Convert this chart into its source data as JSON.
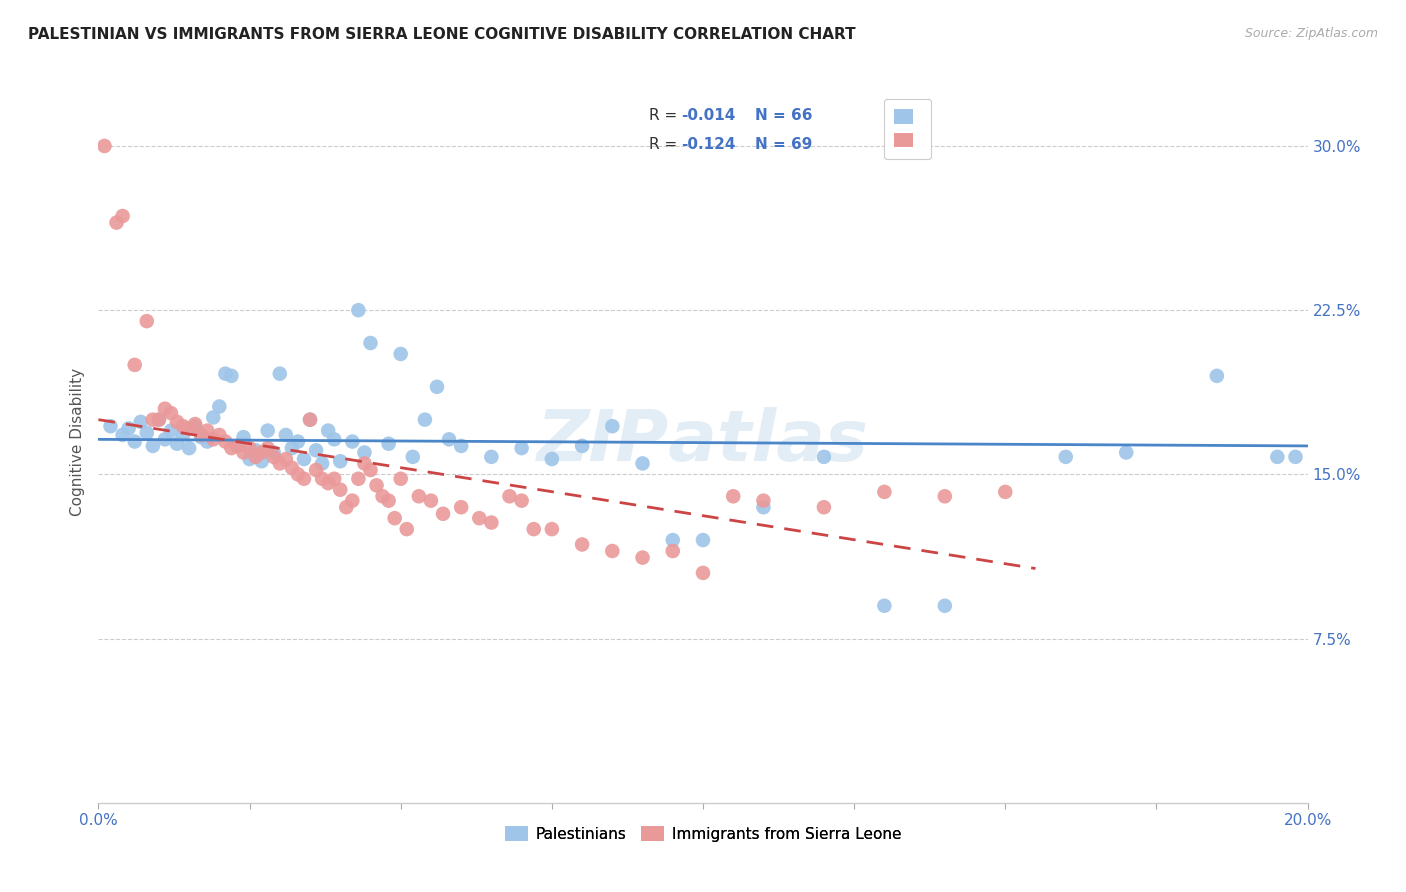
{
  "title": "PALESTINIAN VS IMMIGRANTS FROM SIERRA LEONE COGNITIVE DISABILITY CORRELATION CHART",
  "source": "Source: ZipAtlas.com",
  "ylabel": "Cognitive Disability",
  "right_yticks": [
    "30.0%",
    "22.5%",
    "15.0%",
    "7.5%"
  ],
  "right_ytick_vals": [
    0.3,
    0.225,
    0.15,
    0.075
  ],
  "color_blue": "#9fc5e8",
  "color_pink": "#ea9999",
  "line_blue": "#4a86c8",
  "line_pink": "#cc4444",
  "watermark": "ZIPAtlas",
  "blue_scatter": [
    [
      0.002,
      0.172
    ],
    [
      0.004,
      0.168
    ],
    [
      0.005,
      0.171
    ],
    [
      0.006,
      0.165
    ],
    [
      0.007,
      0.174
    ],
    [
      0.008,
      0.169
    ],
    [
      0.009,
      0.163
    ],
    [
      0.01,
      0.175
    ],
    [
      0.011,
      0.166
    ],
    [
      0.012,
      0.17
    ],
    [
      0.013,
      0.164
    ],
    [
      0.014,
      0.168
    ],
    [
      0.015,
      0.162
    ],
    [
      0.016,
      0.172
    ],
    [
      0.017,
      0.167
    ],
    [
      0.018,
      0.165
    ],
    [
      0.019,
      0.176
    ],
    [
      0.02,
      0.181
    ],
    [
      0.021,
      0.196
    ],
    [
      0.022,
      0.195
    ],
    [
      0.023,
      0.163
    ],
    [
      0.024,
      0.167
    ],
    [
      0.025,
      0.157
    ],
    [
      0.026,
      0.161
    ],
    [
      0.027,
      0.156
    ],
    [
      0.028,
      0.17
    ],
    [
      0.029,
      0.16
    ],
    [
      0.03,
      0.196
    ],
    [
      0.031,
      0.168
    ],
    [
      0.032,
      0.162
    ],
    [
      0.033,
      0.165
    ],
    [
      0.034,
      0.157
    ],
    [
      0.035,
      0.175
    ],
    [
      0.036,
      0.161
    ],
    [
      0.037,
      0.155
    ],
    [
      0.038,
      0.17
    ],
    [
      0.039,
      0.166
    ],
    [
      0.04,
      0.156
    ],
    [
      0.042,
      0.165
    ],
    [
      0.043,
      0.225
    ],
    [
      0.044,
      0.16
    ],
    [
      0.045,
      0.21
    ],
    [
      0.048,
      0.164
    ],
    [
      0.05,
      0.205
    ],
    [
      0.052,
      0.158
    ],
    [
      0.054,
      0.175
    ],
    [
      0.056,
      0.19
    ],
    [
      0.058,
      0.166
    ],
    [
      0.06,
      0.163
    ],
    [
      0.065,
      0.158
    ],
    [
      0.07,
      0.162
    ],
    [
      0.075,
      0.157
    ],
    [
      0.08,
      0.163
    ],
    [
      0.085,
      0.172
    ],
    [
      0.09,
      0.155
    ],
    [
      0.095,
      0.12
    ],
    [
      0.1,
      0.12
    ],
    [
      0.11,
      0.135
    ],
    [
      0.12,
      0.158
    ],
    [
      0.13,
      0.09
    ],
    [
      0.14,
      0.09
    ],
    [
      0.16,
      0.158
    ],
    [
      0.17,
      0.16
    ],
    [
      0.185,
      0.195
    ],
    [
      0.195,
      0.158
    ],
    [
      0.198,
      0.158
    ]
  ],
  "pink_scatter": [
    [
      0.001,
      0.3
    ],
    [
      0.003,
      0.265
    ],
    [
      0.004,
      0.268
    ],
    [
      0.006,
      0.2
    ],
    [
      0.008,
      0.22
    ],
    [
      0.009,
      0.175
    ],
    [
      0.01,
      0.175
    ],
    [
      0.011,
      0.18
    ],
    [
      0.012,
      0.178
    ],
    [
      0.013,
      0.174
    ],
    [
      0.014,
      0.172
    ],
    [
      0.015,
      0.171
    ],
    [
      0.016,
      0.173
    ],
    [
      0.017,
      0.168
    ],
    [
      0.018,
      0.17
    ],
    [
      0.019,
      0.166
    ],
    [
      0.02,
      0.168
    ],
    [
      0.021,
      0.165
    ],
    [
      0.022,
      0.162
    ],
    [
      0.023,
      0.163
    ],
    [
      0.024,
      0.16
    ],
    [
      0.025,
      0.162
    ],
    [
      0.026,
      0.158
    ],
    [
      0.027,
      0.16
    ],
    [
      0.028,
      0.162
    ],
    [
      0.029,
      0.158
    ],
    [
      0.03,
      0.155
    ],
    [
      0.031,
      0.157
    ],
    [
      0.032,
      0.153
    ],
    [
      0.033,
      0.15
    ],
    [
      0.034,
      0.148
    ],
    [
      0.035,
      0.175
    ],
    [
      0.036,
      0.152
    ],
    [
      0.037,
      0.148
    ],
    [
      0.038,
      0.146
    ],
    [
      0.039,
      0.148
    ],
    [
      0.04,
      0.143
    ],
    [
      0.041,
      0.135
    ],
    [
      0.042,
      0.138
    ],
    [
      0.043,
      0.148
    ],
    [
      0.044,
      0.155
    ],
    [
      0.045,
      0.152
    ],
    [
      0.046,
      0.145
    ],
    [
      0.047,
      0.14
    ],
    [
      0.048,
      0.138
    ],
    [
      0.049,
      0.13
    ],
    [
      0.05,
      0.148
    ],
    [
      0.051,
      0.125
    ],
    [
      0.053,
      0.14
    ],
    [
      0.055,
      0.138
    ],
    [
      0.057,
      0.132
    ],
    [
      0.06,
      0.135
    ],
    [
      0.063,
      0.13
    ],
    [
      0.065,
      0.128
    ],
    [
      0.068,
      0.14
    ],
    [
      0.07,
      0.138
    ],
    [
      0.072,
      0.125
    ],
    [
      0.075,
      0.125
    ],
    [
      0.08,
      0.118
    ],
    [
      0.085,
      0.115
    ],
    [
      0.09,
      0.112
    ],
    [
      0.095,
      0.115
    ],
    [
      0.1,
      0.105
    ],
    [
      0.105,
      0.14
    ],
    [
      0.11,
      0.138
    ],
    [
      0.12,
      0.135
    ],
    [
      0.13,
      0.142
    ],
    [
      0.14,
      0.14
    ],
    [
      0.15,
      0.142
    ]
  ],
  "xlim": [
    0.0,
    0.2
  ],
  "ylim": [
    0.0,
    0.33
  ],
  "blue_line_x": [
    0.0,
    0.2
  ],
  "blue_line_y": [
    0.166,
    0.163
  ],
  "pink_line_x": [
    0.0,
    0.155
  ],
  "pink_line_y": [
    0.175,
    0.107
  ],
  "background_color": "#ffffff",
  "grid_color": "#cccccc",
  "legend_r1_text": "R = ",
  "legend_r1_val": "-0.014",
  "legend_r1_n": "  N = 66",
  "legend_r2_text": "R = ",
  "legend_r2_val": "-0.124",
  "legend_r2_n": "  N = 69"
}
